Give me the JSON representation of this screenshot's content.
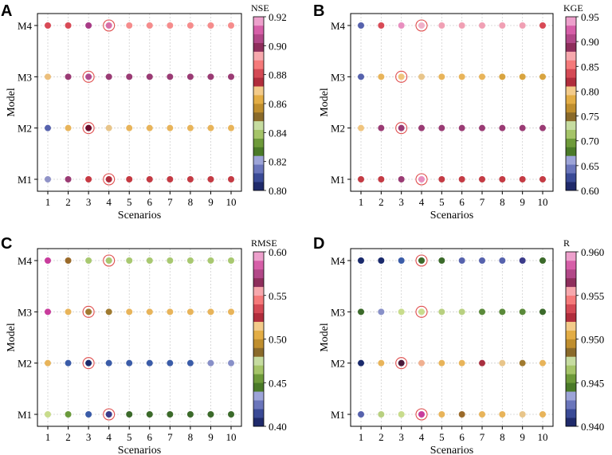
{
  "figure": {
    "x_ticks": [
      "1",
      "2",
      "3",
      "4",
      "5",
      "6",
      "7",
      "8",
      "9",
      "10"
    ],
    "y_ticks": [
      "M1",
      "M2",
      "M3",
      "M4"
    ]
  },
  "chart_data": [
    {
      "type": "scatter",
      "panel": "A",
      "metric": "NSE",
      "xlabel": "Scenarios",
      "ylabel": "Model",
      "xlim": [
        1,
        10
      ],
      "categories_y": [
        "M1",
        "M2",
        "M3",
        "M4"
      ],
      "colorbar": {
        "label": "NSE",
        "min": 0.8,
        "max": 0.92,
        "ticks": [
          "0.80",
          "0.82",
          "0.84",
          "0.86",
          "0.88",
          "0.90",
          "0.92"
        ]
      },
      "colors": [
        "#9093c8",
        "#9a3b74",
        "#c73a44",
        "#b02d3c",
        "#c53a42",
        "#c43b44",
        "#c43b44",
        "#c43b44",
        "#c43b44",
        "#c43b44",
        "#5662ad",
        "#e8b45a",
        "#6b0a2a",
        "#e8c58a",
        "#e8b45a",
        "#e8b45a",
        "#e8b45a",
        "#e8b45a",
        "#e8b45a",
        "#e8b45a",
        "#ecbf7c",
        "#9a3b74",
        "#b04b8e",
        "#9a3b74",
        "#9a3b74",
        "#9a3b74",
        "#9a3b74",
        "#9a3b74",
        "#9a3b74",
        "#9a3b74",
        "#d84a56",
        "#d84a56",
        "#a83b86",
        "#d86fa8",
        "#f58c8c",
        "#f58c8c",
        "#f58c8c",
        "#f58c8c",
        "#f58c8c",
        "#f58c8c"
      ],
      "highlight": [
        [
          4,
          "M4"
        ],
        [
          3,
          "M3"
        ],
        [
          3,
          "M2"
        ],
        [
          4,
          "M1"
        ]
      ],
      "series": [
        {
          "name": "M1",
          "values": [
            0.885,
            0.885,
            0.905,
            0.9,
            0.895,
            0.895,
            0.895,
            0.895,
            0.895,
            0.895
          ]
        },
        {
          "name": "M2",
          "values": [
            0.86,
            0.905,
            0.91,
            0.905,
            0.905,
            0.905,
            0.905,
            0.905,
            0.905,
            0.905
          ]
        },
        {
          "name": "M3",
          "values": [
            0.815,
            0.86,
            0.88,
            0.86,
            0.86,
            0.86,
            0.86,
            0.86,
            0.86,
            0.86
          ]
        },
        {
          "name": "M4",
          "values": [
            0.82,
            0.885,
            0.885,
            0.885,
            0.885,
            0.885,
            0.885,
            0.885,
            0.885,
            0.885
          ]
        }
      ]
    },
    {
      "type": "scatter",
      "panel": "B",
      "metric": "KGE",
      "xlabel": "Scenarios",
      "ylabel": "Model",
      "xlim": [
        1,
        10
      ],
      "categories_y": [
        "M1",
        "M2",
        "M3",
        "M4"
      ],
      "colorbar": {
        "label": "KGE",
        "min": 0.6,
        "max": 0.95,
        "ticks": [
          "0.60",
          "0.65",
          "0.70",
          "0.75",
          "0.80",
          "0.85",
          "0.90",
          "0.95"
        ]
      },
      "colors": [
        "#c43b44",
        "#c43b44",
        "#9a3b74",
        "#e88fbf",
        "#c43b44",
        "#c43b44",
        "#c43b44",
        "#c43b44",
        "#c43b44",
        "#c43b44",
        "#f0c47e",
        "#9a3b74",
        "#9a3b74",
        "#9a3b74",
        "#9a3b74",
        "#9a3b74",
        "#9a3b74",
        "#9a3b74",
        "#9a3b74",
        "#9a3b74",
        "#5662ad",
        "#e8b45a",
        "#f0c47e",
        "#e8c58a",
        "#e8b45a",
        "#e8b45a",
        "#e8b45a",
        "#d8a440",
        "#d8a440",
        "#d8a440",
        "#5662ad",
        "#d84a56",
        "#e88fbf",
        "#f0b0c8",
        "#f0a0b4",
        "#f0a0b4",
        "#f0a0b4",
        "#f0a0b4",
        "#f0a0b4",
        "#d84a56"
      ],
      "highlight": [
        [
          4,
          "M4"
        ],
        [
          3,
          "M3"
        ],
        [
          3,
          "M2"
        ],
        [
          4,
          "M1"
        ]
      ],
      "series": [
        {
          "name": "M1",
          "values": [
            0.86,
            0.86,
            0.88,
            0.93,
            0.86,
            0.86,
            0.86,
            0.86,
            0.86,
            0.86
          ]
        },
        {
          "name": "M2",
          "values": [
            0.8,
            0.88,
            0.88,
            0.88,
            0.88,
            0.88,
            0.88,
            0.88,
            0.88,
            0.88
          ]
        },
        {
          "name": "M3",
          "values": [
            0.64,
            0.79,
            0.8,
            0.81,
            0.79,
            0.79,
            0.79,
            0.78,
            0.78,
            0.78
          ]
        },
        {
          "name": "M4",
          "values": [
            0.64,
            0.85,
            0.93,
            0.91,
            0.91,
            0.91,
            0.91,
            0.91,
            0.91,
            0.85
          ]
        }
      ]
    },
    {
      "type": "scatter",
      "panel": "C",
      "metric": "RMSE",
      "xlabel": "Scenarios",
      "ylabel": "Model",
      "xlim": [
        1,
        10
      ],
      "categories_y": [
        "M1",
        "M2",
        "M3",
        "M4"
      ],
      "colorbar": {
        "label": "RMSE",
        "min": 0.4,
        "max": 0.6,
        "ticks": [
          "0.40",
          "0.45",
          "0.50",
          "0.55",
          "0.60"
        ]
      },
      "colors": [
        "#c8dc8c",
        "#6a9a3c",
        "#3b5ca8",
        "#3b3b8a",
        "#3b6a2a",
        "#3b6a2a",
        "#3b6a2a",
        "#3b6a2a",
        "#3b6a2a",
        "#3b6a2a",
        "#e8b45a",
        "#3b5ca8",
        "#1a2a6c",
        "#3b5ca8",
        "#3b5ca8",
        "#3b5ca8",
        "#3b5ca8",
        "#3b5ca8",
        "#8890c8",
        "#8890c8",
        "#c83c9c",
        "#e8b45a",
        "#a07a30",
        "#a07a30",
        "#e8b45a",
        "#e8b45a",
        "#e8b45a",
        "#e8b45a",
        "#e8b45a",
        "#e8b45a",
        "#c83c9c",
        "#9a6a2a",
        "#a8c870",
        "#a8c870",
        "#a8c870",
        "#a8c870",
        "#a8c870",
        "#a8c870",
        "#a8c870",
        "#a8c870"
      ],
      "highlight": [
        [
          4,
          "M4"
        ],
        [
          3,
          "M3"
        ],
        [
          3,
          "M2"
        ],
        [
          4,
          "M1"
        ]
      ],
      "series": [
        {
          "name": "M1",
          "values": [
            0.46,
            0.45,
            0.42,
            0.41,
            0.44,
            0.44,
            0.44,
            0.44,
            0.44,
            0.44
          ]
        },
        {
          "name": "M2",
          "values": [
            0.5,
            0.42,
            0.4,
            0.42,
            0.42,
            0.42,
            0.42,
            0.42,
            0.43,
            0.43
          ]
        },
        {
          "name": "M3",
          "values": [
            0.58,
            0.5,
            0.49,
            0.49,
            0.5,
            0.5,
            0.5,
            0.5,
            0.5,
            0.5
          ]
        },
        {
          "name": "M4",
          "values": [
            0.58,
            0.48,
            0.47,
            0.47,
            0.47,
            0.47,
            0.47,
            0.47,
            0.47,
            0.47
          ]
        }
      ]
    },
    {
      "type": "scatter",
      "panel": "D",
      "metric": "R",
      "xlabel": "Scenarios",
      "ylabel": "Model",
      "xlim": [
        1,
        10
      ],
      "categories_y": [
        "M1",
        "M2",
        "M3",
        "M4"
      ],
      "colorbar": {
        "label": "R",
        "min": 0.94,
        "max": 0.96,
        "ticks": [
          "0.940",
          "0.945",
          "0.950",
          "0.955",
          "0.960"
        ]
      },
      "colors": [
        "#5662ad",
        "#b8d080",
        "#c8dc8c",
        "#c83c9c",
        "#e8b45a",
        "#9a6a2a",
        "#e8b45a",
        "#e8b45a",
        "#e8c58a",
        "#e8b45a",
        "#1a2a6c",
        "#e8b45a",
        "#4a1a3a",
        "#f0b090",
        "#e8b45a",
        "#e8b45a",
        "#a83040",
        "#e8c58a",
        "#a07a30",
        "#e8b45a",
        "#3b6a2a",
        "#8890c8",
        "#c8dc8c",
        "#c8dc8c",
        "#b8d080",
        "#b8d080",
        "#5a8a3a",
        "#5a8a3a",
        "#5a8a3a",
        "#3b6a2a",
        "#1a2a6c",
        "#1a2a6c",
        "#3b5ca8",
        "#3b6a2a",
        "#3b6a2a",
        "#5662ad",
        "#5662ad",
        "#5662ad",
        "#3b3b8a",
        "#3b6a2a"
      ],
      "highlight": [
        [
          4,
          "M4"
        ],
        [
          4,
          "M3"
        ],
        [
          3,
          "M2"
        ],
        [
          4,
          "M1"
        ]
      ],
      "series": [
        {
          "name": "M1",
          "values": [
            0.9425,
            0.9465,
            0.947,
            0.959,
            0.9505,
            0.9495,
            0.9505,
            0.9505,
            0.951,
            0.9505
          ]
        },
        {
          "name": "M2",
          "values": [
            0.9405,
            0.9505,
            0.96,
            0.952,
            0.9505,
            0.9505,
            0.956,
            0.951,
            0.9495,
            0.9505
          ]
        },
        {
          "name": "M3",
          "values": [
            0.9455,
            0.9435,
            0.947,
            0.947,
            0.9465,
            0.9465,
            0.946,
            0.946,
            0.946,
            0.9455
          ]
        },
        {
          "name": "M4",
          "values": [
            0.9405,
            0.9405,
            0.942,
            0.945,
            0.945,
            0.9425,
            0.9425,
            0.9425,
            0.9415,
            0.945
          ]
        }
      ]
    }
  ]
}
